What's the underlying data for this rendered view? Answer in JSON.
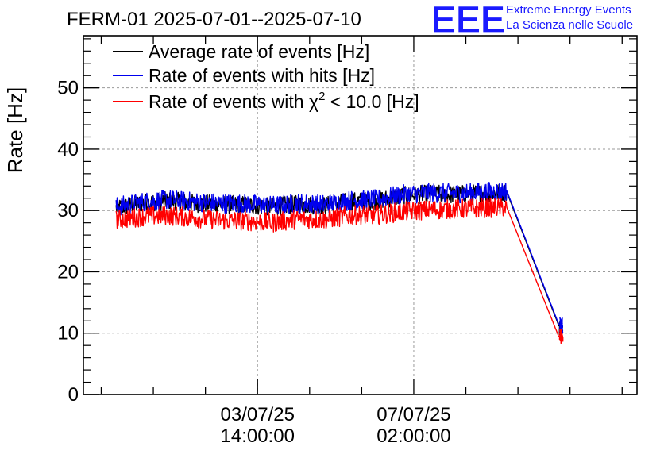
{
  "header": {
    "title": "FERM-01 2025-07-01--2025-07-10",
    "logo_text": "EEE",
    "brand_line1": "Extreme Energy Events",
    "brand_line2": "La Scienza nelle Scuole"
  },
  "colors": {
    "average": "#000000",
    "hits": "#0000ee",
    "chi2": "#ff0000",
    "brand": "#1a1aff",
    "grid": "#9a9a9a"
  },
  "chart_data": {
    "type": "line",
    "title": "FERM-01 2025-07-01--2025-07-10",
    "ylabel": "Rate [Hz]",
    "xlabel": "",
    "ylim": [
      0,
      58.5
    ],
    "xlim_hours_from_first_tick": [
      -93.6,
      204.0
    ],
    "yticks": [
      0,
      10,
      20,
      30,
      40,
      50
    ],
    "xticks": [
      {
        "label": "03/07/25",
        "label2": "14:00:00",
        "date": "2025-07-03 14:00:00"
      },
      {
        "label": "07/07/25",
        "label2": "02:00:00",
        "date": "2025-07-07 02:00:00"
      }
    ],
    "grid": true,
    "legend_position": "top-left",
    "series": [
      {
        "name": "Average rate of events [Hz]",
        "color": "#000000",
        "points": [
          [
            "2025-06-30 10:00",
            30.4
          ],
          [
            "2025-07-01 00:00",
            31.2
          ],
          [
            "2025-07-01 14:00",
            31.6
          ],
          [
            "2025-07-02 04:00",
            31.2
          ],
          [
            "2025-07-02 18:00",
            31.0
          ],
          [
            "2025-07-03 08:00",
            30.9
          ],
          [
            "2025-07-03 22:00",
            30.6
          ],
          [
            "2025-07-04 12:00",
            31.0
          ],
          [
            "2025-07-05 02:00",
            30.8
          ],
          [
            "2025-07-05 16:00",
            31.5
          ],
          [
            "2025-07-06 06:00",
            31.6
          ],
          [
            "2025-07-06 20:00",
            32.4
          ],
          [
            "2025-07-07 10:00",
            32.7
          ],
          [
            "2025-07-08 00:00",
            32.6
          ],
          [
            "2025-07-08 14:00",
            32.8
          ],
          [
            "2025-07-09 04:00",
            33.0
          ],
          [
            "2025-07-10 08:00",
            11.2
          ],
          [
            "2025-07-10 10:00",
            11.0
          ]
        ]
      },
      {
        "name": "Rate of events with hits [Hz]",
        "color": "#0000ee",
        "points": [
          [
            "2025-06-30 10:00",
            30.6
          ],
          [
            "2025-07-01 00:00",
            31.4
          ],
          [
            "2025-07-01 14:00",
            31.8
          ],
          [
            "2025-07-02 04:00",
            31.4
          ],
          [
            "2025-07-02 18:00",
            31.2
          ],
          [
            "2025-07-03 08:00",
            31.1
          ],
          [
            "2025-07-03 22:00",
            30.8
          ],
          [
            "2025-07-04 12:00",
            31.2
          ],
          [
            "2025-07-05 02:00",
            31.0
          ],
          [
            "2025-07-05 16:00",
            31.7
          ],
          [
            "2025-07-06 06:00",
            31.8
          ],
          [
            "2025-07-06 20:00",
            32.6
          ],
          [
            "2025-07-07 10:00",
            32.9
          ],
          [
            "2025-07-08 00:00",
            32.8
          ],
          [
            "2025-07-08 14:00",
            33.0
          ],
          [
            "2025-07-09 04:00",
            33.2
          ],
          [
            "2025-07-10 08:00",
            11.4
          ],
          [
            "2025-07-10 10:00",
            11.2
          ]
        ]
      },
      {
        "name": "Rate of events with χ² < 10.0 [Hz]",
        "color": "#ff0000",
        "points": [
          [
            "2025-06-30 10:00",
            28.5
          ],
          [
            "2025-07-01 00:00",
            29.0
          ],
          [
            "2025-07-01 14:00",
            29.2
          ],
          [
            "2025-07-02 04:00",
            28.8
          ],
          [
            "2025-07-02 18:00",
            28.4
          ],
          [
            "2025-07-03 08:00",
            28.3
          ],
          [
            "2025-07-03 22:00",
            28.0
          ],
          [
            "2025-07-04 12:00",
            28.6
          ],
          [
            "2025-07-05 02:00",
            28.5
          ],
          [
            "2025-07-05 16:00",
            29.2
          ],
          [
            "2025-07-06 06:00",
            29.3
          ],
          [
            "2025-07-06 20:00",
            29.8
          ],
          [
            "2025-07-07 10:00",
            30.1
          ],
          [
            "2025-07-08 00:00",
            30.2
          ],
          [
            "2025-07-08 14:00",
            30.4
          ],
          [
            "2025-07-09 04:00",
            30.5
          ],
          [
            "2025-07-10 08:00",
            9.4
          ],
          [
            "2025-07-10 10:00",
            9.3
          ]
        ]
      }
    ]
  },
  "legend": {
    "items": [
      {
        "prefix": "Average rate of events [Hz]",
        "sup": "",
        "suffix": ""
      },
      {
        "prefix": "Rate of events with hits [Hz]",
        "sup": "",
        "suffix": ""
      },
      {
        "prefix": "Rate of events with χ",
        "sup": "2",
        "suffix": " < 10.0 [Hz]"
      }
    ]
  }
}
